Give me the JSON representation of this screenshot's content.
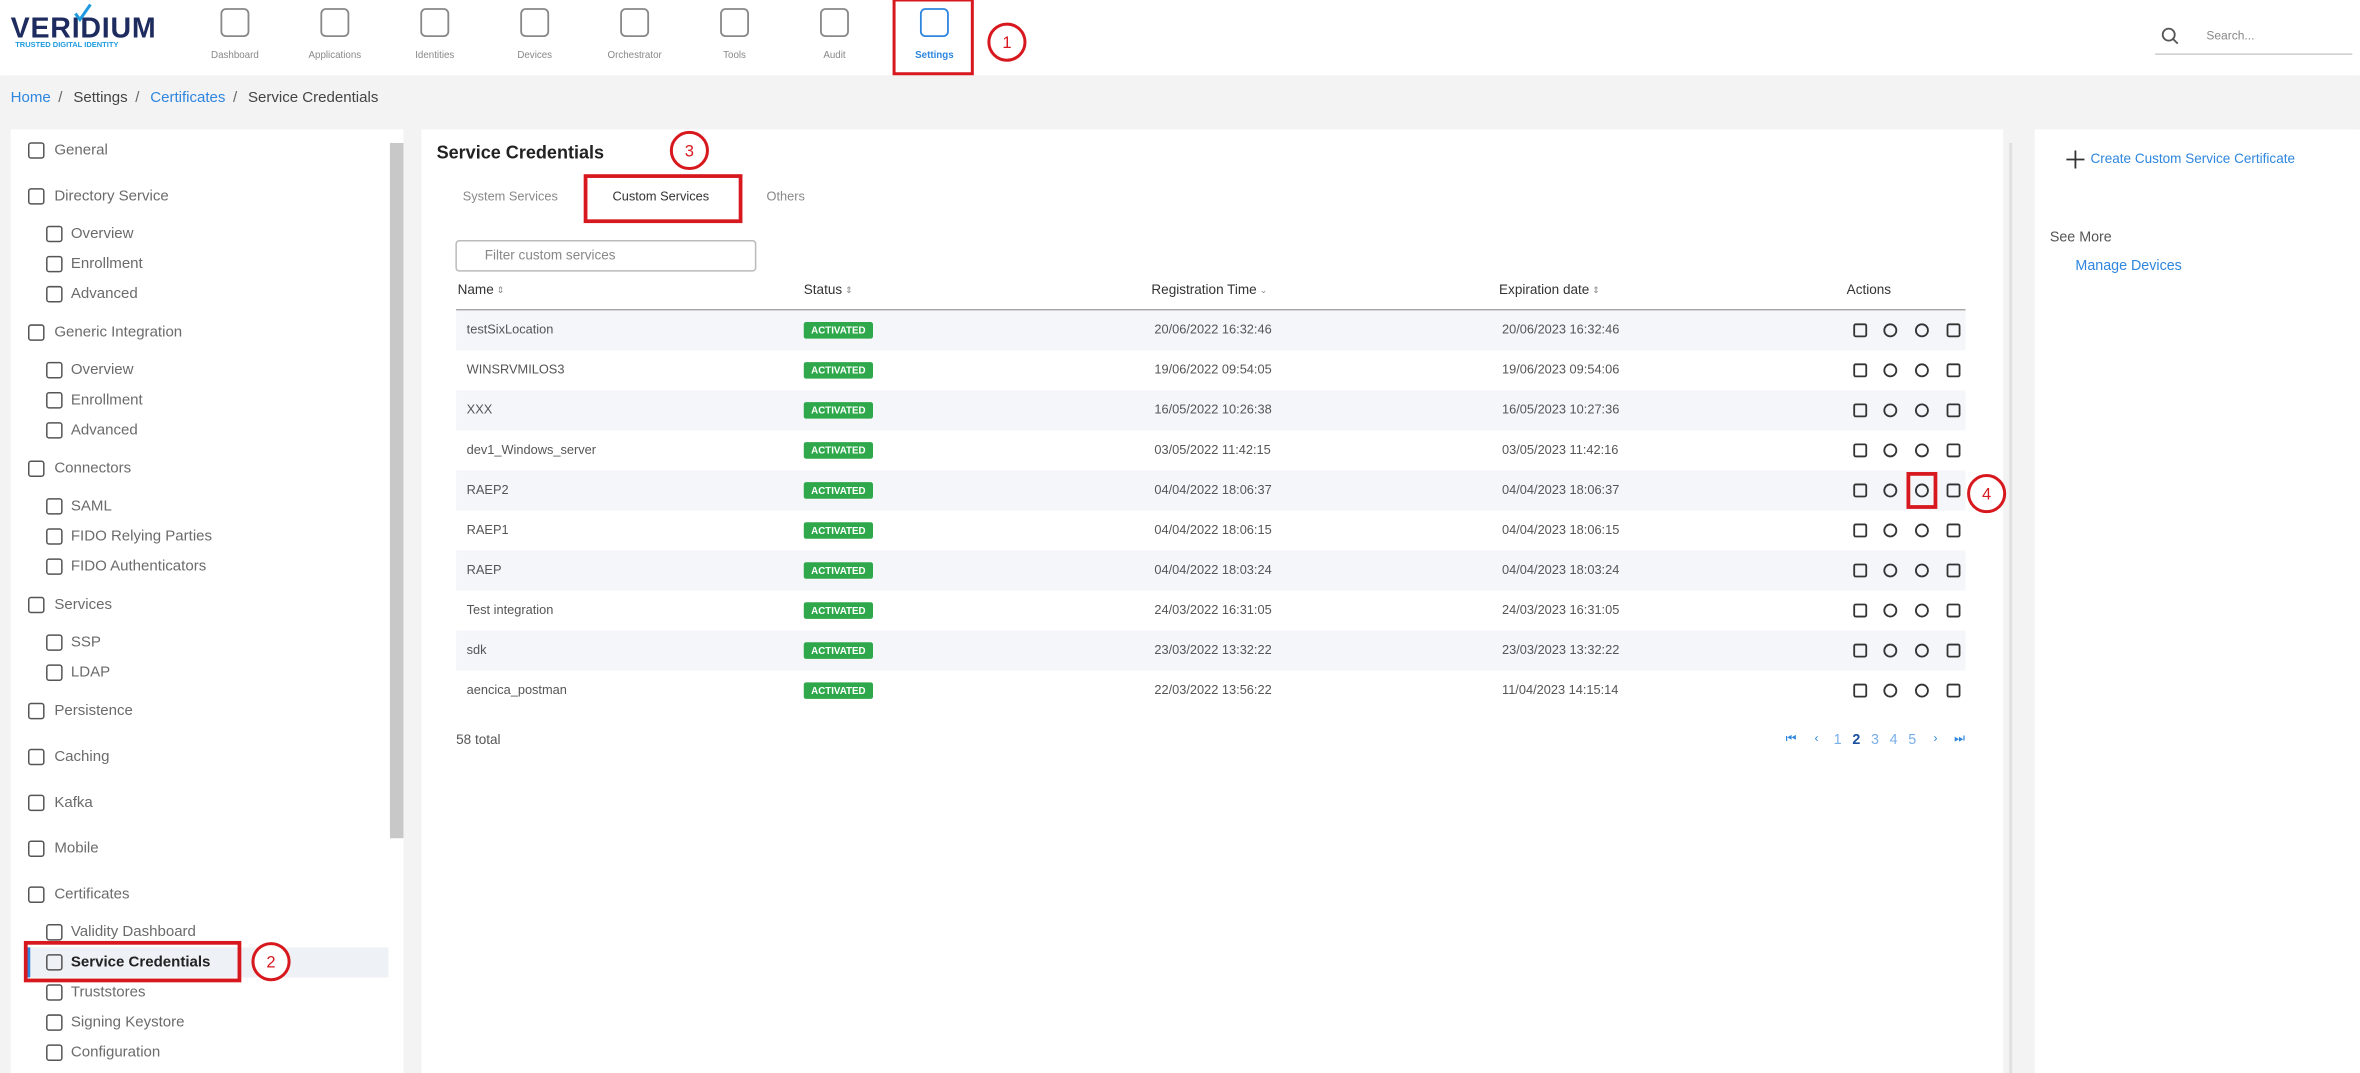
{
  "header": {
    "logo": "VERIDIUM",
    "tagline": "TRUSTED DIGITAL IDENTITY",
    "nav": [
      {
        "label": "Dashboard"
      },
      {
        "label": "Applications"
      },
      {
        "label": "Identities"
      },
      {
        "label": "Devices"
      },
      {
        "label": "Orchestrator"
      },
      {
        "label": "Tools"
      },
      {
        "label": "Audit"
      },
      {
        "label": "Settings",
        "active": true
      }
    ],
    "search_placeholder": "Search..."
  },
  "breadcrumb": [
    {
      "label": "Home",
      "link": true
    },
    {
      "label": "Settings"
    },
    {
      "label": "Certificates",
      "link": true
    },
    {
      "label": "Service Credentials"
    }
  ],
  "sidebar": [
    {
      "label": "General"
    },
    {
      "label": "Directory Service",
      "children": [
        {
          "label": "Overview"
        },
        {
          "label": "Enrollment"
        },
        {
          "label": "Advanced"
        }
      ]
    },
    {
      "label": "Generic Integration",
      "children": [
        {
          "label": "Overview"
        },
        {
          "label": "Enrollment"
        },
        {
          "label": "Advanced"
        }
      ]
    },
    {
      "label": "Connectors",
      "children": [
        {
          "label": "SAML"
        },
        {
          "label": "FIDO Relying Parties"
        },
        {
          "label": "FIDO Authenticators"
        }
      ]
    },
    {
      "label": "Services",
      "children": [
        {
          "label": "SSP"
        },
        {
          "label": "LDAP"
        }
      ]
    },
    {
      "label": "Persistence"
    },
    {
      "label": "Caching"
    },
    {
      "label": "Kafka"
    },
    {
      "label": "Mobile"
    },
    {
      "label": "Certificates",
      "children": [
        {
          "label": "Validity Dashboard"
        },
        {
          "label": "Service Credentials",
          "active": true
        },
        {
          "label": "Truststores"
        },
        {
          "label": "Signing Keystore"
        },
        {
          "label": "Configuration"
        }
      ]
    }
  ],
  "main": {
    "title": "Service Credentials",
    "tabs": [
      {
        "label": "System Services"
      },
      {
        "label": "Custom Services",
        "active": true
      },
      {
        "label": "Others"
      }
    ],
    "filter_placeholder": "Filter custom services",
    "columns": [
      "Name",
      "Status",
      "Registration Time",
      "Expiration date",
      "Actions"
    ],
    "rows": [
      [
        "testSixLocation",
        "ACTIVATED",
        "20/06/2022 16:32:46",
        "20/06/2023 16:32:46"
      ],
      [
        "WINSRVMILOS3",
        "ACTIVATED",
        "19/06/2022 09:54:05",
        "19/06/2023 09:54:06"
      ],
      [
        "XXX",
        "ACTIVATED",
        "16/05/2022 10:26:38",
        "16/05/2023 10:27:36"
      ],
      [
        "dev1_Windows_server",
        "ACTIVATED",
        "03/05/2022 11:42:15",
        "03/05/2023 11:42:16"
      ],
      [
        "RAEP2",
        "ACTIVATED",
        "04/04/2022 18:06:37",
        "04/04/2023 18:06:37"
      ],
      [
        "RAEP1",
        "ACTIVATED",
        "04/04/2022 18:06:15",
        "04/04/2023 18:06:15"
      ],
      [
        "RAEP",
        "ACTIVATED",
        "04/04/2022 18:03:24",
        "04/04/2023 18:03:24"
      ],
      [
        "Test integration",
        "ACTIVATED",
        "24/03/2022 16:31:05",
        "24/03/2023 16:31:05"
      ],
      [
        "sdk",
        "ACTIVATED",
        "23/03/2022 13:32:22",
        "23/03/2023 13:32:22"
      ],
      [
        "aencica_postman",
        "ACTIVATED",
        "22/03/2022 13:56:22",
        "11/04/2023 14:15:14"
      ]
    ],
    "total": "58 total",
    "pages": [
      1,
      2,
      3,
      4,
      5
    ],
    "current_page": 2
  },
  "right_panel": {
    "create": "Create Custom Service Certificate",
    "see_more": "See More",
    "link": "Manage Devices"
  },
  "annotations": [
    "1",
    "2",
    "3",
    "4"
  ]
}
